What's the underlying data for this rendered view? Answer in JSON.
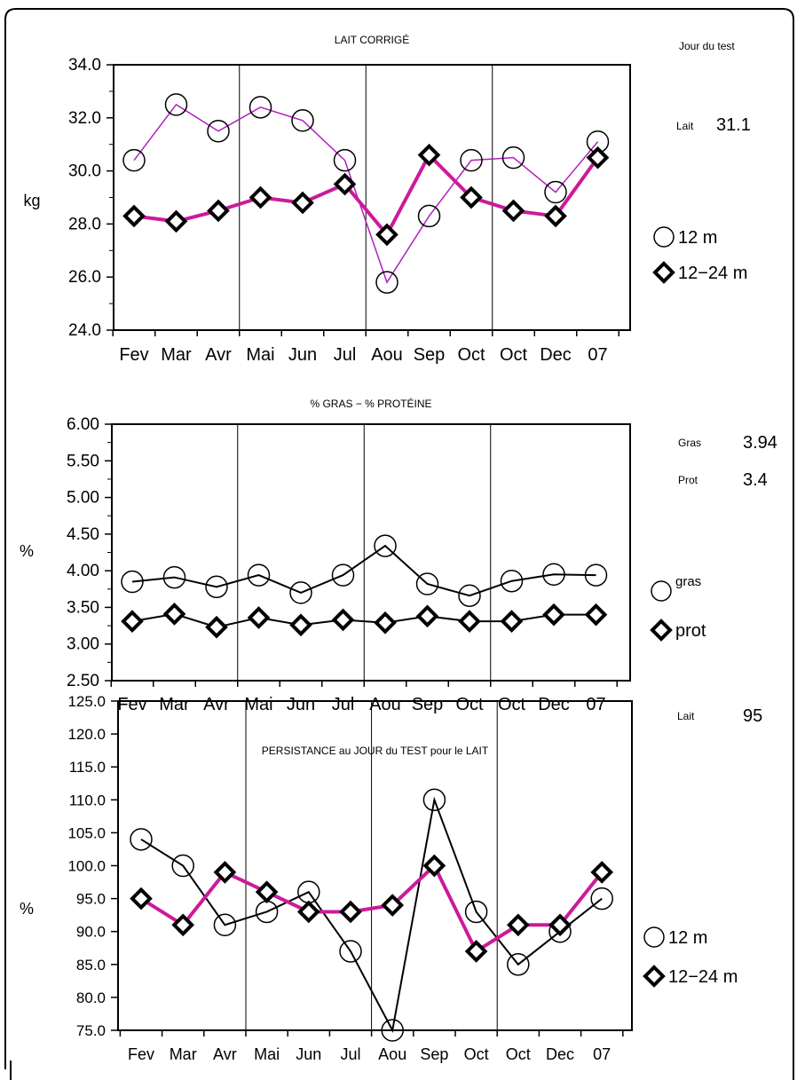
{
  "side": {
    "jour_label": "Jour du test",
    "lait_label": "Lait",
    "lait_value": "31.1",
    "gras_label": "Gras",
    "gras_value": "3.94",
    "prot_label": "Prot",
    "prot_value": "3.4",
    "lait2_label": "Lait",
    "lait2_value": "95"
  },
  "colors": {
    "magenta": "#cc1a9a",
    "black": "#000000"
  },
  "chart_data": [
    {
      "type": "line",
      "title": "LAIT CORRIGÉ",
      "ylabel": "kg",
      "xlabel": "",
      "categories": [
        "Fev",
        "Mar",
        "Avr",
        "Mai",
        "Jun",
        "Jul",
        "Aou",
        "Sep",
        "Oct",
        "Oct",
        "Dec",
        "07"
      ],
      "ylim": [
        24,
        34
      ],
      "yticks": [
        "24.0",
        "26.0",
        "28.0",
        "30.0",
        "32.0",
        "34.0"
      ],
      "grid": "vertical lines every 3 months",
      "series": [
        {
          "name": "12 m",
          "marker": "circle",
          "color": "#b020c0",
          "values": [
            30.4,
            32.5,
            31.5,
            32.4,
            31.9,
            30.4,
            25.8,
            28.3,
            30.4,
            30.5,
            29.2,
            31.1
          ]
        },
        {
          "name": "12−24 m",
          "marker": "diamond",
          "color": "#cc1a9a",
          "values": [
            28.3,
            28.1,
            28.5,
            29.0,
            28.8,
            29.5,
            27.6,
            30.6,
            29.0,
            28.5,
            28.3,
            30.5
          ]
        }
      ],
      "legend": "right"
    },
    {
      "type": "line",
      "title": "% GRAS − % PROTÉINE",
      "ylabel": "%",
      "xlabel": "",
      "categories": [
        "Fev",
        "Mar",
        "Avr",
        "Mai",
        "Jun",
        "Jul",
        "Aou",
        "Sep",
        "Oct",
        "Oct",
        "Dec",
        "07"
      ],
      "ylim": [
        2.5,
        6.0
      ],
      "yticks": [
        "2.50",
        "3.00",
        "3.50",
        "4.00",
        "4.50",
        "5.00",
        "5.50",
        "6.00"
      ],
      "grid": "vertical lines every 3 months",
      "series": [
        {
          "name": "gras",
          "marker": "circle",
          "color": "#000000",
          "values": [
            3.85,
            3.91,
            3.78,
            3.94,
            3.7,
            3.94,
            4.34,
            3.82,
            3.66,
            3.86,
            3.95,
            3.94
          ]
        },
        {
          "name": "prot",
          "marker": "diamond",
          "color": "#000000",
          "values": [
            3.31,
            3.41,
            3.23,
            3.36,
            3.26,
            3.33,
            3.29,
            3.38,
            3.31,
            3.31,
            3.4,
            3.4
          ]
        }
      ],
      "legend": "right"
    },
    {
      "type": "line",
      "title": "PERSISTANCE au JOUR du TEST pour le LAIT",
      "ylabel": "%",
      "xlabel": "",
      "categories": [
        "Fev",
        "Mar",
        "Avr",
        "Mai",
        "Jun",
        "Jul",
        "Aou",
        "Sep",
        "Oct",
        "Oct",
        "Dec",
        "07"
      ],
      "ylim": [
        75,
        125
      ],
      "yticks": [
        "75.0",
        "80.0",
        "85.0",
        "90.0",
        "95.0",
        "100.0",
        "105.0",
        "110.0",
        "115.0",
        "120.0",
        "125.0"
      ],
      "grid": "vertical lines every 3 months",
      "series": [
        {
          "name": "12 m",
          "marker": "circle",
          "color": "#000000",
          "values": [
            104,
            100,
            91,
            93,
            96,
            87,
            75,
            110,
            93,
            85,
            90,
            95
          ]
        },
        {
          "name": "12−24 m",
          "marker": "diamond",
          "color": "#cc1a9a",
          "values": [
            95,
            91,
            99,
            96,
            93,
            93,
            94,
            100,
            87,
            91,
            91,
            99
          ]
        }
      ],
      "legend": "right"
    }
  ]
}
